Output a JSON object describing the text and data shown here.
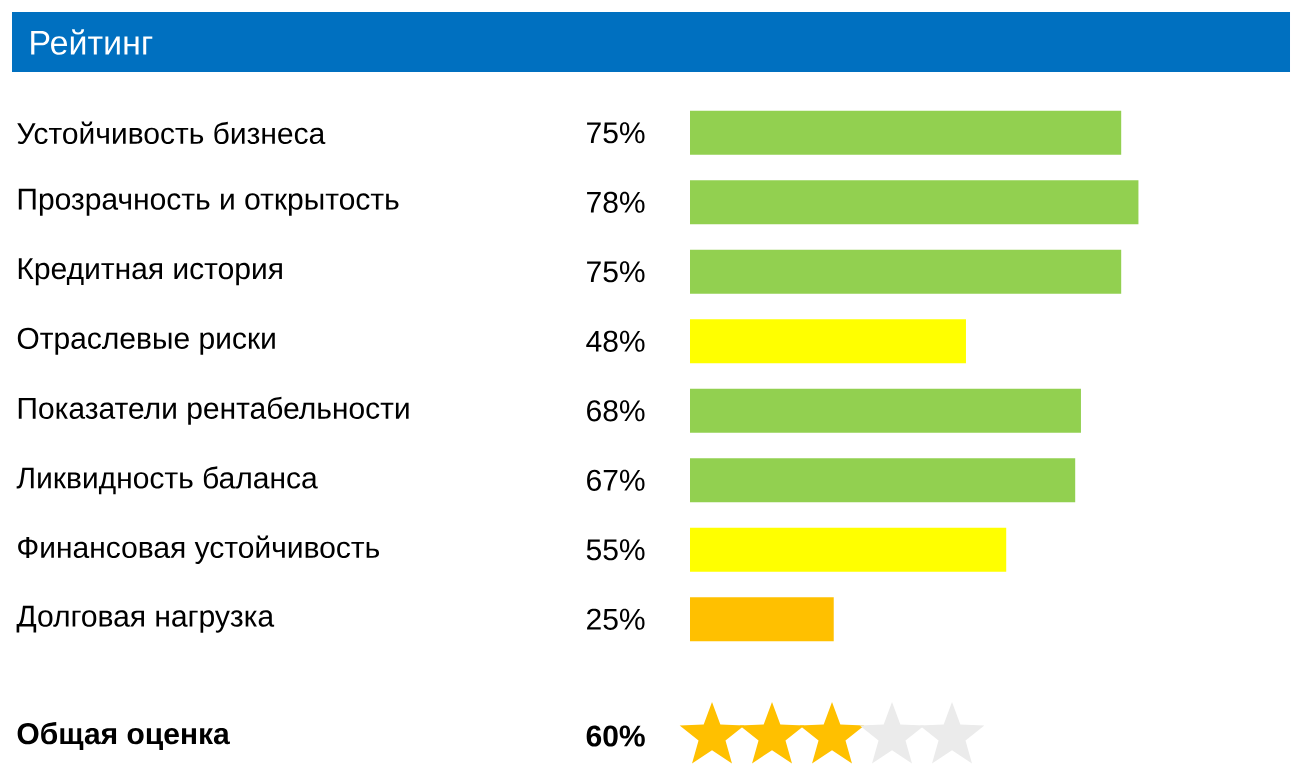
{
  "chart_data": {
    "type": "bar",
    "orientation": "horizontal",
    "title": "Рейтинг",
    "categories": [
      "Устойчивость бизнеса",
      "Прозрачность и открытость",
      "Кредитная история",
      "Отраслевые риски",
      "Показатели рентабельности",
      "Ликвидность баланса",
      "Финансовая устойчивость",
      "Долговая нагрузка"
    ],
    "values": [
      75,
      78,
      75,
      48,
      68,
      67,
      55,
      25
    ],
    "value_labels": [
      "75%",
      "78%",
      "75%",
      "48%",
      "68%",
      "67%",
      "55%",
      "25%"
    ],
    "colors": [
      "#92d050",
      "#92d050",
      "#92d050",
      "#ffff00",
      "#92d050",
      "#92d050",
      "#ffff00",
      "#ffc000"
    ],
    "tick_labels": "y",
    "annotations": [
      "**Общая оценка**",
      "**60%**"
    ]
  }
}
